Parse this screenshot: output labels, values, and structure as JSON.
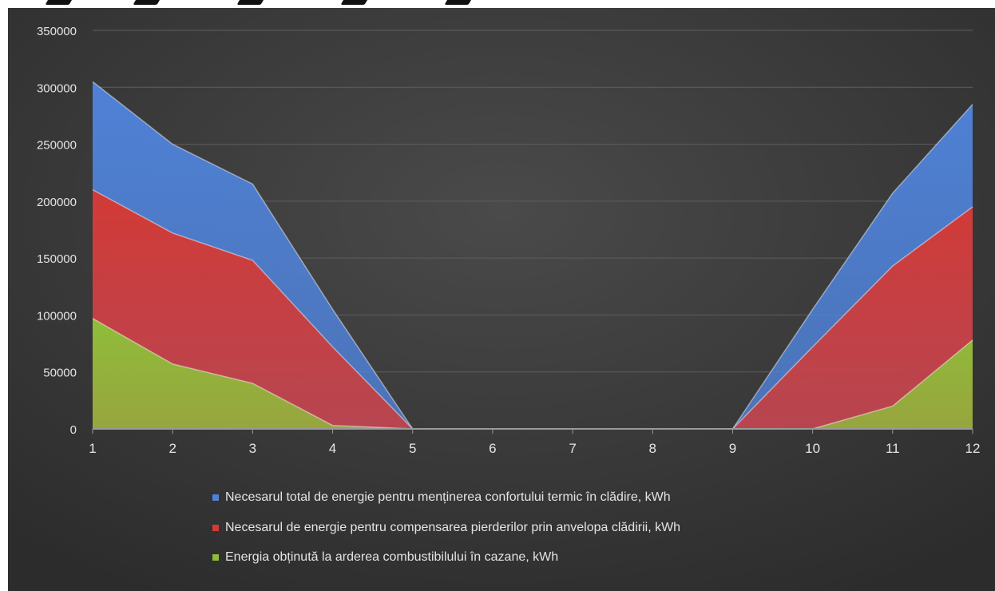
{
  "chart_data": {
    "type": "area",
    "stacked": false,
    "title": "",
    "xlabel": "",
    "ylabel": "",
    "x": [
      "1",
      "2",
      "3",
      "4",
      "5",
      "6",
      "7",
      "8",
      "9",
      "10",
      "11",
      "12"
    ],
    "ylim": [
      0,
      350000
    ],
    "yticks": [
      "0",
      "50000",
      "100000",
      "150000",
      "200000",
      "250000",
      "300000",
      "350000"
    ],
    "grid": true,
    "legend_position": "bottom",
    "series": [
      {
        "name": "Necesarul total de energie pentru menținerea confortului termic în clădire, kWh",
        "color": "#4f81d6",
        "values": [
          305000,
          250000,
          215000,
          105000,
          0,
          0,
          0,
          0,
          0,
          105000,
          207000,
          285000
        ]
      },
      {
        "name": "Necesarul de energie pentru compensarea pierderilor prin anvelopa clădirii, kWh",
        "color": "#d23a36",
        "values": [
          210000,
          172000,
          148000,
          72000,
          0,
          0,
          0,
          0,
          0,
          72000,
          143000,
          195000
        ]
      },
      {
        "name": "Energia obținută la arderea combustibilului în cazane, kWh",
        "color": "#8fbd3a",
        "values": [
          97000,
          57000,
          40000,
          3000,
          0,
          0,
          0,
          0,
          0,
          0,
          20000,
          78000
        ]
      }
    ],
    "colors": {
      "background": "#3c3c3c",
      "grid": "#5e5e5e",
      "text": "#e4e4e4"
    }
  }
}
